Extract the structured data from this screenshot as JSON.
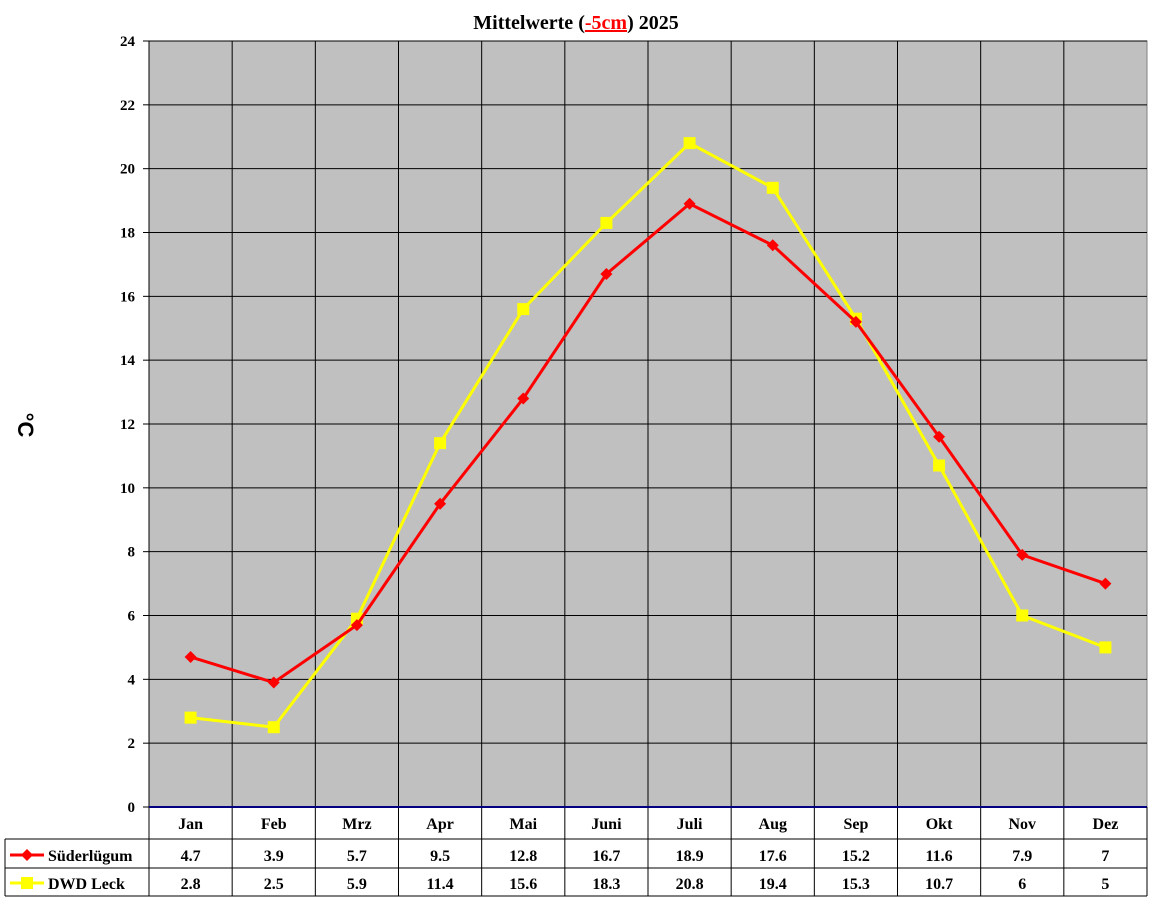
{
  "title": {
    "prefix": "Mittelwerte (",
    "highlight": "-5cm",
    "suffix": ") 2025"
  },
  "chart_data": {
    "type": "line",
    "title": "Mittelwerte (-5cm) 2025",
    "xlabel": "",
    "ylabel": "°C",
    "ylim": [
      0,
      24
    ],
    "yticks": [
      0,
      2,
      4,
      6,
      8,
      10,
      12,
      14,
      16,
      18,
      20,
      22,
      24
    ],
    "grid": true,
    "legend_position": "data-table-left",
    "categories": [
      "Jan",
      "Feb",
      "Mrz",
      "Apr",
      "Mai",
      "Juni",
      "Juli",
      "Aug",
      "Sep",
      "Okt",
      "Nov",
      "Dez"
    ],
    "series": [
      {
        "name": "Süderlügum",
        "color": "#FF0000",
        "marker": "diamond",
        "values": [
          4.7,
          3.9,
          5.7,
          9.5,
          12.8,
          16.7,
          18.9,
          17.6,
          15.2,
          11.6,
          7.9,
          7
        ]
      },
      {
        "name": "DWD Leck",
        "color": "#FFFF00",
        "marker": "square",
        "values": [
          2.8,
          2.5,
          5.9,
          11.4,
          15.6,
          18.3,
          20.8,
          19.4,
          15.3,
          10.7,
          6,
          5
        ]
      }
    ],
    "table_display": [
      [
        "4.7",
        "3.9",
        "5.7",
        "9.5",
        "12.8",
        "16.7",
        "18.9",
        "17.6",
        "15.2",
        "11.6",
        "7.9",
        "7"
      ],
      [
        "2.8",
        "2.5",
        "5.9",
        "11.4",
        "15.6",
        "18.3",
        "20.8",
        "19.4",
        "15.3",
        "10.7",
        "6",
        "5"
      ]
    ]
  },
  "colors": {
    "plot_bg": "#C0C0C0",
    "grid": "#000000",
    "axis_zero": "#000080"
  }
}
